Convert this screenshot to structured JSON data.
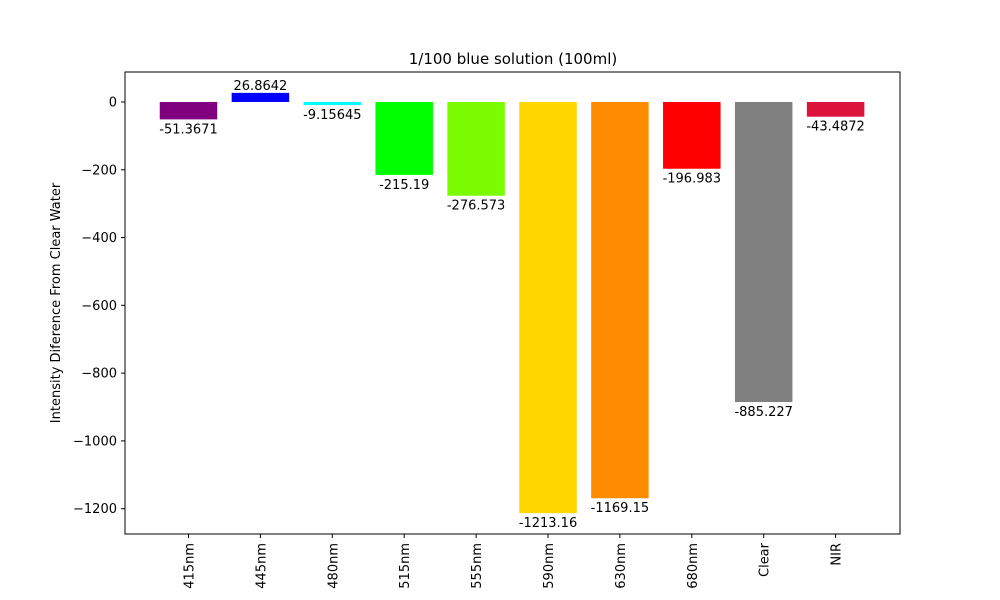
{
  "chart_data": {
    "type": "bar",
    "title": "1/100 blue solution (100ml)",
    "xlabel": "",
    "ylabel": "Intensity Diference From Clear Water",
    "categories": [
      "415nm",
      "445nm",
      "480nm",
      "515nm",
      "555nm",
      "590nm",
      "630nm",
      "680nm",
      "Clear",
      "NIR"
    ],
    "values": [
      -51.3671,
      26.8642,
      -9.15645,
      -215.19,
      -276.573,
      -1213.16,
      -1169.15,
      -196.983,
      -885.227,
      -43.4872
    ],
    "value_labels": [
      "-51.3671",
      "26.8642",
      "-9.15645",
      "-215.19",
      "-276.573",
      "-1213.16",
      "-1169.15",
      "-196.983",
      "-885.227",
      "-43.4872"
    ],
    "colors": [
      "#800080",
      "#0000ff",
      "#00ffff",
      "#00ff00",
      "#7cfc00",
      "#ffd700",
      "#ff8c00",
      "#ff0000",
      "#808080",
      "#dc143c"
    ],
    "yticks": [
      0,
      -200,
      -400,
      -600,
      -800,
      -1000,
      -1200
    ],
    "ytick_labels": [
      "0",
      "−200",
      "−400",
      "−600",
      "−800",
      "−1000",
      "−1200"
    ],
    "ylim": [
      -1274.66,
      88.4543
    ],
    "grid": false,
    "legend": "none"
  }
}
